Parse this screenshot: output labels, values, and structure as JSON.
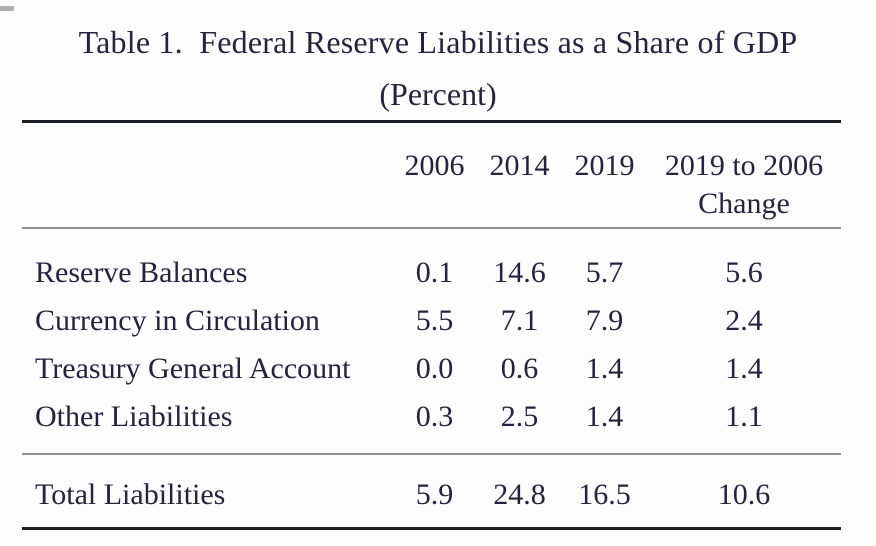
{
  "caption": {
    "title": "Table 1.  Federal Reserve Liabilities as a Share of GDP",
    "subtitle": "(Percent)"
  },
  "table": {
    "header": {
      "cols": [
        "2006",
        "2014",
        "2019"
      ],
      "change_col": {
        "line1": "2019 to 2006",
        "line2": "Change"
      }
    },
    "rows": [
      {
        "label": "Reserve Balances",
        "values": [
          "0.1",
          "14.6",
          "5.7",
          "5.6"
        ]
      },
      {
        "label": "Currency in Circulation",
        "values": [
          "5.5",
          "7.1",
          "7.9",
          "2.4"
        ]
      },
      {
        "label": "Treasury General Account",
        "values": [
          "0.0",
          "0.6",
          "1.4",
          "1.4"
        ]
      },
      {
        "label": "Other Liabilities",
        "values": [
          "0.3",
          "2.5",
          "1.4",
          "1.1"
        ]
      }
    ],
    "total_row": {
      "label": "Total Liabilities",
      "values": [
        "5.9",
        "24.8",
        "16.5",
        "10.6"
      ]
    }
  },
  "chart_data": {
    "type": "table",
    "title": "Table 1. Federal Reserve Liabilities as a Share of GDP",
    "subtitle": "(Percent)",
    "columns": [
      "",
      "2006",
      "2014",
      "2019",
      "2019 to 2006 Change"
    ],
    "rows": [
      [
        "Reserve Balances",
        0.1,
        14.6,
        5.7,
        5.6
      ],
      [
        "Currency in Circulation",
        5.5,
        7.1,
        7.9,
        2.4
      ],
      [
        "Treasury General Account",
        0.0,
        0.6,
        1.4,
        1.4
      ],
      [
        "Other Liabilities",
        0.3,
        2.5,
        1.4,
        1.1
      ],
      [
        "Total Liabilities",
        5.9,
        24.8,
        16.5,
        10.6
      ]
    ],
    "colors": {
      "text": "#26233a",
      "thick_rule": "#1d1d24",
      "thin_rule": "#8e8e93",
      "background": "#fdfdfd"
    }
  }
}
